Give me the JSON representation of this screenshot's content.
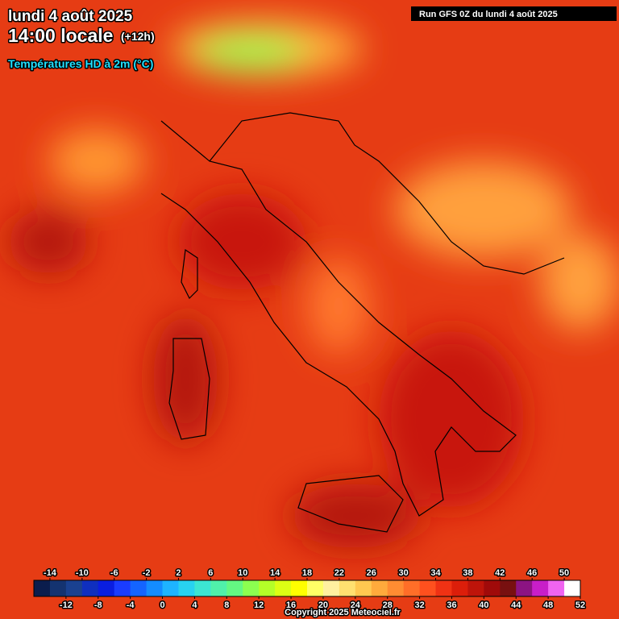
{
  "header": {
    "date": "lundi 4 août 2025",
    "time": "14:00 locale",
    "offset": "(+12h)",
    "variable": "Températures HD à 2m (°C)",
    "run": "Run GFS 0Z du lundi 4 août 2025"
  },
  "legend": {
    "range": [
      -16,
      52
    ],
    "ticks_top": [
      -14,
      -10,
      -6,
      -2,
      2,
      6,
      10,
      14,
      18,
      22,
      26,
      30,
      34,
      38,
      42,
      46,
      50
    ],
    "ticks_bottom": [
      -12,
      -8,
      -4,
      0,
      4,
      8,
      12,
      16,
      20,
      24,
      28,
      32,
      36,
      40,
      44,
      48,
      52
    ],
    "colors": [
      "#0b1d4d",
      "#143370",
      "#1a4190",
      "#0f2fbf",
      "#0a1ee0",
      "#1a3cff",
      "#1464ff",
      "#148cff",
      "#1eb4ff",
      "#28d2f0",
      "#3ce6d2",
      "#50f0aa",
      "#64f882",
      "#8cff50",
      "#b4ff28",
      "#dcff14",
      "#ffff00",
      "#ffff66",
      "#fff0a0",
      "#ffe070",
      "#ffc850",
      "#ffaa3c",
      "#ff8c32",
      "#ff6e28",
      "#ff501e",
      "#f03214",
      "#dc1e0a",
      "#be140a",
      "#a00a0a",
      "#781010",
      "#8c1482",
      "#c81ec8",
      "#f064f0",
      "#ffffff"
    ]
  },
  "copyright": "Copyright 2025 Meteociel.fr"
}
